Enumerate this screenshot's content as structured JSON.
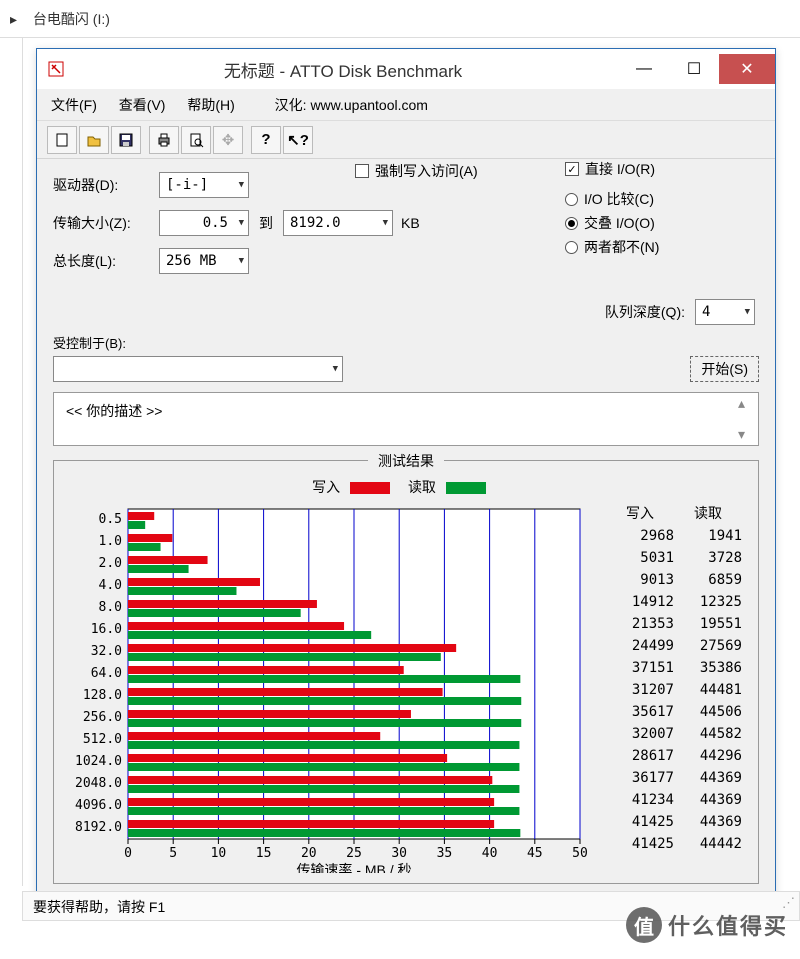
{
  "breadcrumb": {
    "sep": "▸",
    "item": "台电酷闪 (I:)"
  },
  "window": {
    "title": "无标题 - ATTO Disk Benchmark"
  },
  "menu": {
    "file": "文件(F)",
    "view": "查看(V)",
    "help": "帮助(H)",
    "credit": "汉化: www.upantool.com"
  },
  "controls": {
    "drive_label": "驱动器(D):",
    "drive_value": "[-i-]",
    "transfer_label": "传输大小(Z):",
    "transfer_from": "0.5",
    "transfer_to_label": "到",
    "transfer_to": "8192.0",
    "transfer_unit": "KB",
    "length_label": "总长度(L):",
    "length_value": "256 MB",
    "force_write": "强制写入访问(A)",
    "direct_io": "直接 I/O(R)",
    "io_compare": "I/O 比较(C)",
    "overlapped_io": "交叠 I/O(O)",
    "neither": "两者都不(N)",
    "queue_label": "队列深度(Q):",
    "queue_value": "4",
    "controlled_label": "受控制于(B):",
    "start_btn": "开始(S)"
  },
  "description": {
    "text": "<<  你的描述   >>"
  },
  "results": {
    "title": "测试结果",
    "write_label": "写入",
    "read_label": "读取",
    "write_color": "#e30613",
    "read_color": "#009933",
    "grid_color": "#0000cc",
    "axis_color": "#000000",
    "bg_color": "#ffffff",
    "x_axis_label": "传输速率 - MB / 秒",
    "x_max": 50,
    "x_ticks": [
      0,
      5,
      10,
      15,
      20,
      25,
      30,
      35,
      40,
      45,
      50
    ],
    "rows": [
      {
        "size": "0.5",
        "write": 2968,
        "read": 1941,
        "w_mb": 2.9,
        "r_mb": 1.9
      },
      {
        "size": "1.0",
        "write": 5031,
        "read": 3728,
        "w_mb": 4.9,
        "r_mb": 3.6
      },
      {
        "size": "2.0",
        "write": 9013,
        "read": 6859,
        "w_mb": 8.8,
        "r_mb": 6.7
      },
      {
        "size": "4.0",
        "write": 14912,
        "read": 12325,
        "w_mb": 14.6,
        "r_mb": 12.0
      },
      {
        "size": "8.0",
        "write": 21353,
        "read": 19551,
        "w_mb": 20.9,
        "r_mb": 19.1
      },
      {
        "size": "16.0",
        "write": 24499,
        "read": 27569,
        "w_mb": 23.9,
        "r_mb": 26.9
      },
      {
        "size": "32.0",
        "write": 37151,
        "read": 35386,
        "w_mb": 36.3,
        "r_mb": 34.6
      },
      {
        "size": "64.0",
        "write": 31207,
        "read": 44481,
        "w_mb": 30.5,
        "r_mb": 43.4
      },
      {
        "size": "128.0",
        "write": 35617,
        "read": 44506,
        "w_mb": 34.8,
        "r_mb": 43.5
      },
      {
        "size": "256.0",
        "write": 32007,
        "read": 44582,
        "w_mb": 31.3,
        "r_mb": 43.5
      },
      {
        "size": "512.0",
        "write": 28617,
        "read": 44296,
        "w_mb": 27.9,
        "r_mb": 43.3
      },
      {
        "size": "1024.0",
        "write": 36177,
        "read": 44369,
        "w_mb": 35.3,
        "r_mb": 43.3
      },
      {
        "size": "2048.0",
        "write": 41234,
        "read": 44369,
        "w_mb": 40.3,
        "r_mb": 43.3
      },
      {
        "size": "4096.0",
        "write": 41425,
        "read": 44369,
        "w_mb": 40.5,
        "r_mb": 43.3
      },
      {
        "size": "8192.0",
        "write": 41425,
        "read": 44442,
        "w_mb": 40.5,
        "r_mb": 43.4
      }
    ]
  },
  "status": {
    "text": "要获得帮助，请按 F1"
  },
  "watermark": {
    "icon": "值",
    "text": "什么值得买"
  }
}
